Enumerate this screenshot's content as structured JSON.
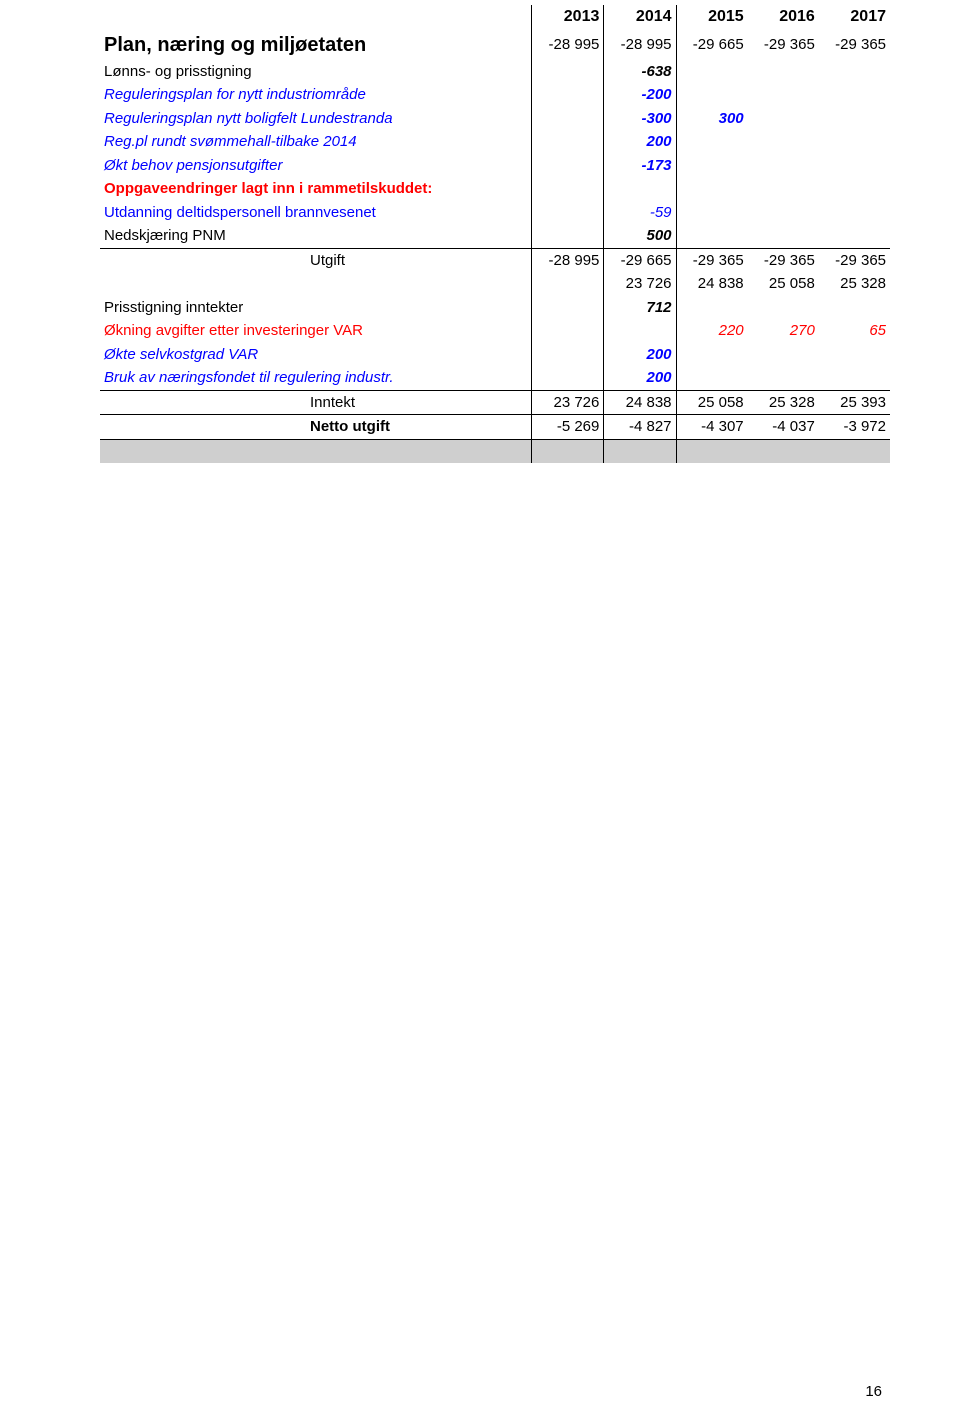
{
  "table": {
    "headers": [
      "2013",
      "2014",
      "2015",
      "2016",
      "2017"
    ],
    "rows": [
      {
        "label": "Plan, næring og miljøetaten",
        "label_class": "big-bold black",
        "vals": [
          "-28 995",
          "-28 995",
          "-29 665",
          "-29 365",
          "-29 365"
        ],
        "val_color": "black"
      },
      {
        "label": "Lønns- og prisstigning",
        "label_class": "black",
        "vals": [
          "",
          "-638",
          "",
          "",
          ""
        ],
        "val_color": "black italic bold"
      },
      {
        "label": "Reguleringsplan for nytt industriområde",
        "label_class": "blue italic",
        "vals": [
          "",
          "-200",
          "",
          "",
          ""
        ],
        "val_color": "blue italic bold"
      },
      {
        "label": "Reguleringsplan nytt boligfelt Lundestranda",
        "label_class": "blue italic",
        "vals": [
          "",
          "-300",
          "300",
          "",
          ""
        ],
        "val_color": "blue italic bold"
      },
      {
        "label": "Reg.pl rundt svømmehall-tilbake 2014",
        "label_class": "blue italic",
        "vals": [
          "",
          "200",
          "",
          "",
          ""
        ],
        "val_color": "blue italic bold"
      },
      {
        "label": "Økt behov pensjonsutgifter",
        "label_class": "blue italic",
        "vals": [
          "",
          "-173",
          "",
          "",
          ""
        ],
        "val_color": "blue italic bold"
      },
      {
        "label": "Oppgaveendringer lagt inn i rammetilskuddet:",
        "label_class": "red bold",
        "vals": [
          "",
          "",
          "",
          "",
          ""
        ],
        "val_color": ""
      },
      {
        "label": "Utdanning deltidspersonell brannvesenet",
        "label_class": "blue",
        "vals": [
          "",
          "-59",
          "",
          "",
          ""
        ],
        "val_color": "blue italic"
      },
      {
        "label": "Nedskjæring PNM",
        "label_class": "black",
        "vals": [
          "",
          "500",
          "",
          "",
          ""
        ],
        "val_color": "black italic bold"
      },
      {
        "label": "Utgift",
        "sub": true,
        "label_class": "black",
        "vals": [
          "-28 995",
          "-29 665",
          "-29 365",
          "-29 365",
          "-29 365"
        ],
        "val_color": "black",
        "top_border": true
      },
      {
        "label": "",
        "label_class": "",
        "vals": [
          "",
          "23 726",
          "24 838",
          "25 058",
          "25 328"
        ],
        "val_color": "black"
      },
      {
        "label": "Prisstigning inntekter",
        "label_class": "black",
        "vals": [
          "",
          "712",
          "",
          "",
          ""
        ],
        "val_color": "black italic bold"
      },
      {
        "label": "Økning avgifter etter investeringer VAR",
        "label_class": "red",
        "vals": [
          "",
          "",
          "220",
          "270",
          "65"
        ],
        "val_color": "red italic"
      },
      {
        "label": "Økte selvkostgrad VAR",
        "label_class": "blue italic",
        "vals": [
          "",
          "200",
          "",
          "",
          ""
        ],
        "val_color": "blue italic bold"
      },
      {
        "label": "Bruk av næringsfondet til regulering industr.",
        "label_class": "blue italic",
        "vals": [
          "",
          "200",
          "",
          "",
          ""
        ],
        "val_color": "blue italic bold"
      },
      {
        "label": "Inntekt",
        "sub": true,
        "label_class": "black",
        "vals": [
          "23 726",
          "24 838",
          "25 058",
          "25 328",
          "25 393"
        ],
        "val_color": "black",
        "top_border": true
      },
      {
        "label": "Netto utgift",
        "sub": true,
        "label_class": "black bold",
        "vals": [
          "-5 269",
          "-4 827",
          "-4 307",
          "-4 037",
          "-3 972"
        ],
        "val_color": "black",
        "top_border": true,
        "bottom_border": true
      }
    ],
    "colors": {
      "text_black": "#000000",
      "text_blue": "#0000ff",
      "text_red": "#ff0000",
      "border": "#000000",
      "footer_bg": "#cfcfcf",
      "background": "#ffffff"
    },
    "fonts": {
      "base_size": 15,
      "big_bold_size": 20
    }
  },
  "page_number": "16"
}
